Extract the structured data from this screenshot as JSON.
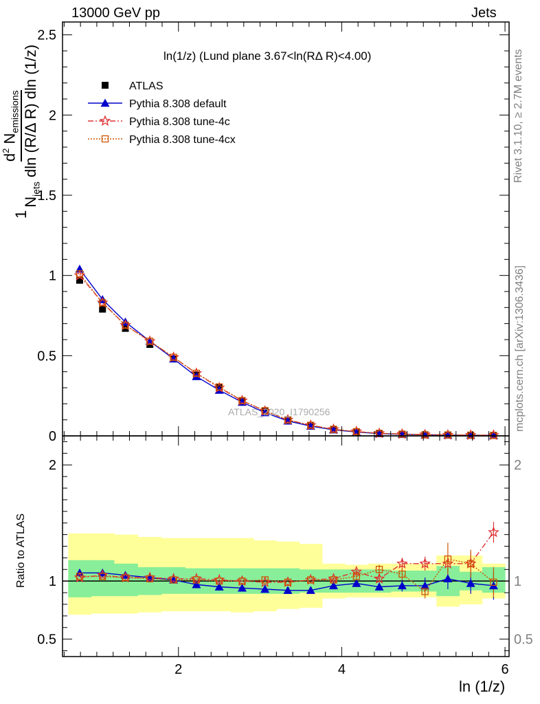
{
  "header": {
    "energy_label": "13000 GeV pp",
    "process_label": "Jets"
  },
  "side_labels": {
    "rivet": "Rivet 3.1.10, ≥ 2.7M events",
    "mcplots": "mcplots.cern.ch [arXiv:1306.3436]"
  },
  "watermark": "ATLAS_2020_I1790256",
  "chart_data": [
    {
      "type": "line",
      "panel": "main",
      "title": "ln(1/z) (Lund plane 3.67<ln(RΔ R)<4.00)",
      "xlabel": "ln (1/z)",
      "ylabel": "1/N_jets d²N_emissions/dln(R/ΔR) dln(1/z)",
      "ylabel_parts": {
        "frac_num": "1",
        "njets": "N",
        "njets_sub": "jets",
        "rest": "dln (R/Δ R) dln (1/z)",
        "d2": "d",
        "d2_sup": "2",
        "nemis": "N",
        "nemis_sub": "emissions"
      },
      "xlim": [
        0.58,
        6.05
      ],
      "ylim": [
        0,
        2.58
      ],
      "xticks": [
        2,
        4,
        6
      ],
      "yticks": [
        0,
        0.5,
        1,
        1.5,
        2,
        2.5
      ],
      "ytick_labels": [
        "0",
        "0.5",
        "1",
        "1.5",
        "2",
        "2.5"
      ],
      "legend_position": "top-left",
      "x": [
        0.79,
        1.07,
        1.35,
        1.65,
        1.94,
        2.22,
        2.5,
        2.78,
        3.06,
        3.34,
        3.62,
        3.9,
        4.18,
        4.46,
        4.74,
        5.02,
        5.3,
        5.58,
        5.86
      ],
      "series": [
        {
          "name": "ATLAS",
          "style": "data",
          "color": "#000000",
          "marker": "square",
          "values": [
            0.97,
            0.79,
            0.67,
            0.57,
            0.48,
            0.38,
            0.3,
            0.22,
            0.155,
            0.1,
            0.065,
            0.04,
            0.025,
            0.015,
            0.01,
            0.007,
            0.005,
            0.004,
            0.003
          ]
        },
        {
          "name": "Pythia 8.308 default",
          "style": "solid",
          "color": "#0000cc",
          "marker": "triangle",
          "values": [
            1.04,
            0.85,
            0.71,
            0.59,
            0.48,
            0.37,
            0.285,
            0.21,
            0.145,
            0.093,
            0.061,
            0.038,
            0.024,
            0.014,
            0.0095,
            0.0068,
            0.0051,
            0.0039,
            0.0029
          ]
        },
        {
          "name": "Pythia 8.308 tune-4c",
          "style": "dashdot",
          "color": "#dd3333",
          "marker": "star",
          "values": [
            1.0,
            0.83,
            0.69,
            0.59,
            0.49,
            0.39,
            0.3,
            0.22,
            0.155,
            0.1,
            0.066,
            0.041,
            0.027,
            0.016,
            0.0115,
            0.0081,
            0.0059,
            0.0047,
            0.0042
          ]
        },
        {
          "name": "Pythia 8.308 tune-4cx",
          "style": "dotted",
          "color": "#cc5500",
          "marker": "open-square",
          "values": [
            1.01,
            0.83,
            0.69,
            0.59,
            0.49,
            0.39,
            0.305,
            0.22,
            0.157,
            0.099,
            0.066,
            0.041,
            0.026,
            0.016,
            0.011,
            0.0064,
            0.006,
            0.0047,
            0.003
          ]
        }
      ]
    },
    {
      "type": "line",
      "panel": "ratio",
      "xlabel": "ln (1/z)",
      "ylabel": "Ratio to ATLAS",
      "xlim": [
        0.58,
        6.05
      ],
      "ylim": [
        0.35,
        2.25
      ],
      "xticks": [
        2,
        4,
        6
      ],
      "yticks": [
        0.5,
        1,
        2
      ],
      "ytick_labels": [
        "0.5",
        "1",
        "2"
      ],
      "x_edges": [
        0.65,
        0.93,
        1.21,
        1.5,
        1.79,
        2.08,
        2.36,
        2.64,
        2.92,
        3.2,
        3.48,
        3.76,
        4.04,
        4.32,
        4.6,
        4.88,
        5.16,
        5.44,
        5.72,
        6.0
      ],
      "bands": {
        "inner": {
          "color": "#88ee99",
          "lower": [
            0.86,
            0.87,
            0.87,
            0.88,
            0.89,
            0.89,
            0.89,
            0.89,
            0.89,
            0.89,
            0.9,
            0.9,
            0.9,
            0.9,
            0.91,
            0.91,
            0.87,
            0.92,
            0.9
          ],
          "upper": [
            1.18,
            1.18,
            1.15,
            1.12,
            1.12,
            1.11,
            1.11,
            1.11,
            1.11,
            1.11,
            1.1,
            1.1,
            1.1,
            1.1,
            1.09,
            1.09,
            1.13,
            1.08,
            1.12
          ]
        },
        "outer": {
          "color": "#ffff99",
          "lower": [
            0.71,
            0.72,
            0.72,
            0.73,
            0.74,
            0.74,
            0.74,
            0.73,
            0.74,
            0.76,
            0.77,
            0.85,
            0.86,
            0.86,
            0.86,
            0.86,
            0.78,
            0.8,
            0.85
          ],
          "upper": [
            1.41,
            1.41,
            1.4,
            1.38,
            1.37,
            1.37,
            1.37,
            1.37,
            1.35,
            1.34,
            1.32,
            1.15,
            1.14,
            1.15,
            1.15,
            1.15,
            1.22,
            1.22,
            1.15
          ]
        }
      },
      "x": [
        0.79,
        1.07,
        1.35,
        1.65,
        1.94,
        2.22,
        2.5,
        2.78,
        3.06,
        3.34,
        3.62,
        3.9,
        4.18,
        4.46,
        4.74,
        5.02,
        5.3,
        5.58,
        5.86
      ],
      "series": [
        {
          "name": "Pythia 8.308 default",
          "color": "#0000cc",
          "marker": "triangle",
          "values": [
            1.07,
            1.07,
            1.05,
            1.03,
            1.01,
            0.97,
            0.95,
            0.94,
            0.93,
            0.92,
            0.92,
            0.96,
            0.98,
            0.95,
            0.96,
            0.96,
            1.02,
            0.98,
            0.96
          ],
          "errors": [
            0,
            0,
            0,
            0,
            0,
            0,
            0,
            0,
            0,
            0,
            0,
            0,
            0.02,
            0.03,
            0.05,
            0.07,
            0.09,
            0.09,
            0.12
          ]
        },
        {
          "name": "Pythia 8.308 tune-4c",
          "color": "#dd3333",
          "marker": "star",
          "values": [
            1.03,
            1.05,
            1.03,
            1.03,
            1.02,
            1.02,
            1.01,
            1.0,
            0.99,
            0.99,
            1.01,
            1.02,
            1.08,
            1.02,
            1.15,
            1.15,
            1.15,
            1.15,
            1.42
          ],
          "errors": [
            0,
            0,
            0,
            0,
            0,
            0,
            0,
            0,
            0,
            0,
            0,
            0.01,
            0.02,
            0.04,
            0.05,
            0.06,
            0.07,
            0.1,
            0.09
          ]
        },
        {
          "name": "Pythia 8.308 tune-4cx",
          "color": "#cc5500",
          "marker": "open-square",
          "values": [
            1.04,
            1.04,
            1.03,
            1.02,
            1.01,
            1.01,
            1.0,
            1.0,
            1.01,
            0.99,
            1.01,
            1.01,
            1.04,
            1.1,
            1.06,
            0.91,
            1.19,
            1.15,
            0.99
          ],
          "errors": [
            0,
            0,
            0,
            0,
            0,
            0,
            0,
            0,
            0,
            0,
            0,
            0,
            0.02,
            0.04,
            0.05,
            0.06,
            0.14,
            0.12,
            0.13
          ]
        }
      ]
    }
  ]
}
